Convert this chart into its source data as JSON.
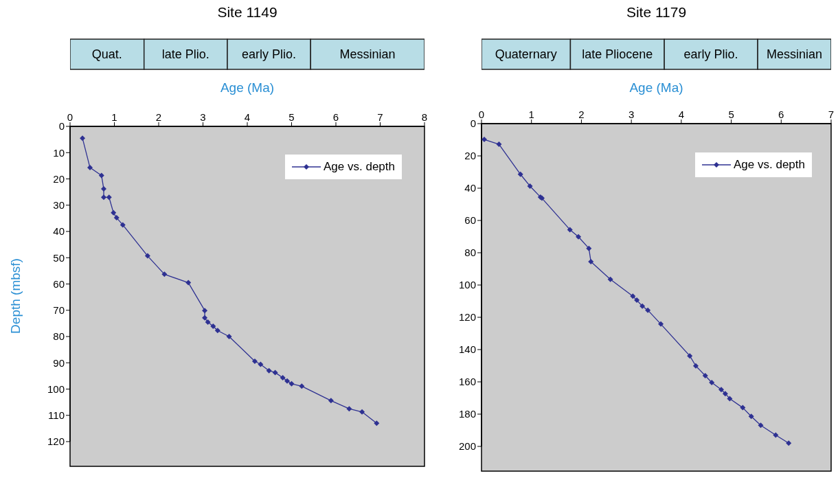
{
  "chart_data": [
    {
      "type": "bar",
      "title": "Site 1149",
      "orientation": "horizontal",
      "stacked": true,
      "categories": [
        null
      ],
      "xlim": [
        0,
        8
      ],
      "tick_labels": false,
      "series": [
        {
          "color": "#b8dde6",
          "values": [
            1.67
          ],
          "value_labels": [
            "Quat."
          ]
        },
        {
          "color": "#b8dde6",
          "values": [
            1.88
          ],
          "value_labels": [
            "late Plio."
          ]
        },
        {
          "color": "#b8dde6",
          "values": [
            1.88
          ],
          "value_labels": [
            "early Plio."
          ]
        },
        {
          "color": "#b8dde6",
          "values": [
            2.57
          ],
          "value_labels": [
            "Messinian"
          ]
        }
      ]
    },
    {
      "type": "line",
      "xlabel": "Age (Ma)",
      "ylabel": "Depth (mbsf)",
      "xlim": [
        0,
        8
      ],
      "xticks": [
        0,
        1,
        2,
        3,
        4,
        5,
        6,
        7,
        8
      ],
      "ylim": [
        120,
        0
      ],
      "yticks": [
        0,
        10,
        20,
        30,
        40,
        50,
        60,
        70,
        80,
        90,
        100,
        110,
        120
      ],
      "legend": "top right",
      "marker": "diamond",
      "line_style": "solid",
      "series": [
        {
          "name": "Age vs. depth",
          "color": "#2e3192",
          "x": [
            0.28,
            0.45,
            0.71,
            0.76,
            0.76,
            0.88,
            0.98,
            1.05,
            1.19,
            1.75,
            2.13,
            2.67,
            3.04,
            3.04,
            3.11,
            3.23,
            3.33,
            3.59,
            4.17,
            4.3,
            4.49,
            4.63,
            4.8,
            4.9,
            5.0,
            5.23,
            5.89,
            6.3,
            6.59,
            6.92
          ],
          "values": [
            4.5,
            15.7,
            18.7,
            23.8,
            27,
            27,
            32.9,
            34.8,
            37.5,
            49.3,
            56.3,
            59.5,
            70.1,
            72.9,
            74.5,
            76.1,
            77.7,
            80,
            89.4,
            90.6,
            93,
            93.7,
            95.7,
            96.9,
            98,
            98.9,
            104.4,
            107.5,
            108.7,
            113
          ]
        }
      ]
    },
    {
      "type": "bar",
      "title": "Site 1179",
      "orientation": "horizontal",
      "stacked": true,
      "categories": [
        null
      ],
      "xlim": [
        0,
        7
      ],
      "tick_labels": false,
      "series": [
        {
          "color": "#b8dde6",
          "values": [
            1.78
          ],
          "value_labels": [
            "Quaternary"
          ]
        },
        {
          "color": "#b8dde6",
          "values": [
            1.88
          ],
          "value_labels": [
            "late Pliocene"
          ]
        },
        {
          "color": "#b8dde6",
          "values": [
            1.87
          ],
          "value_labels": [
            "early Plio."
          ]
        },
        {
          "color": "#b8dde6",
          "values": [
            1.47
          ],
          "value_labels": [
            "Messinian"
          ]
        }
      ]
    },
    {
      "type": "line",
      "xlabel": "Age (Ma)",
      "xlim": [
        0,
        7
      ],
      "xticks": [
        0,
        1,
        2,
        3,
        4,
        5,
        6,
        7
      ],
      "ylim": [
        200,
        0
      ],
      "yticks": [
        0,
        20,
        40,
        60,
        80,
        100,
        120,
        140,
        160,
        180,
        200
      ],
      "legend": "top right",
      "marker": "diamond",
      "line_style": "solid",
      "series": [
        {
          "name": "Age vs. depth",
          "color": "#2e3192",
          "x": [
            0.055,
            0.35,
            0.78,
            0.97,
            1.18,
            1.21,
            1.77,
            1.94,
            2.15,
            2.19,
            2.58,
            3.03,
            3.11,
            3.22,
            3.33,
            3.59,
            4.17,
            4.29,
            4.48,
            4.61,
            4.8,
            4.88,
            4.97,
            5.23,
            5.4,
            5.59,
            5.89,
            6.15
          ],
          "values": [
            9.8,
            12.8,
            31.4,
            38.7,
            45.5,
            46.2,
            65.7,
            70.1,
            77.3,
            85.5,
            96.5,
            106.9,
            109.4,
            113.1,
            115.6,
            124.2,
            143.9,
            150.1,
            156.2,
            160.4,
            164.8,
            167.3,
            170.4,
            176,
            181.4,
            186.9,
            193,
            198
          ]
        }
      ]
    }
  ]
}
